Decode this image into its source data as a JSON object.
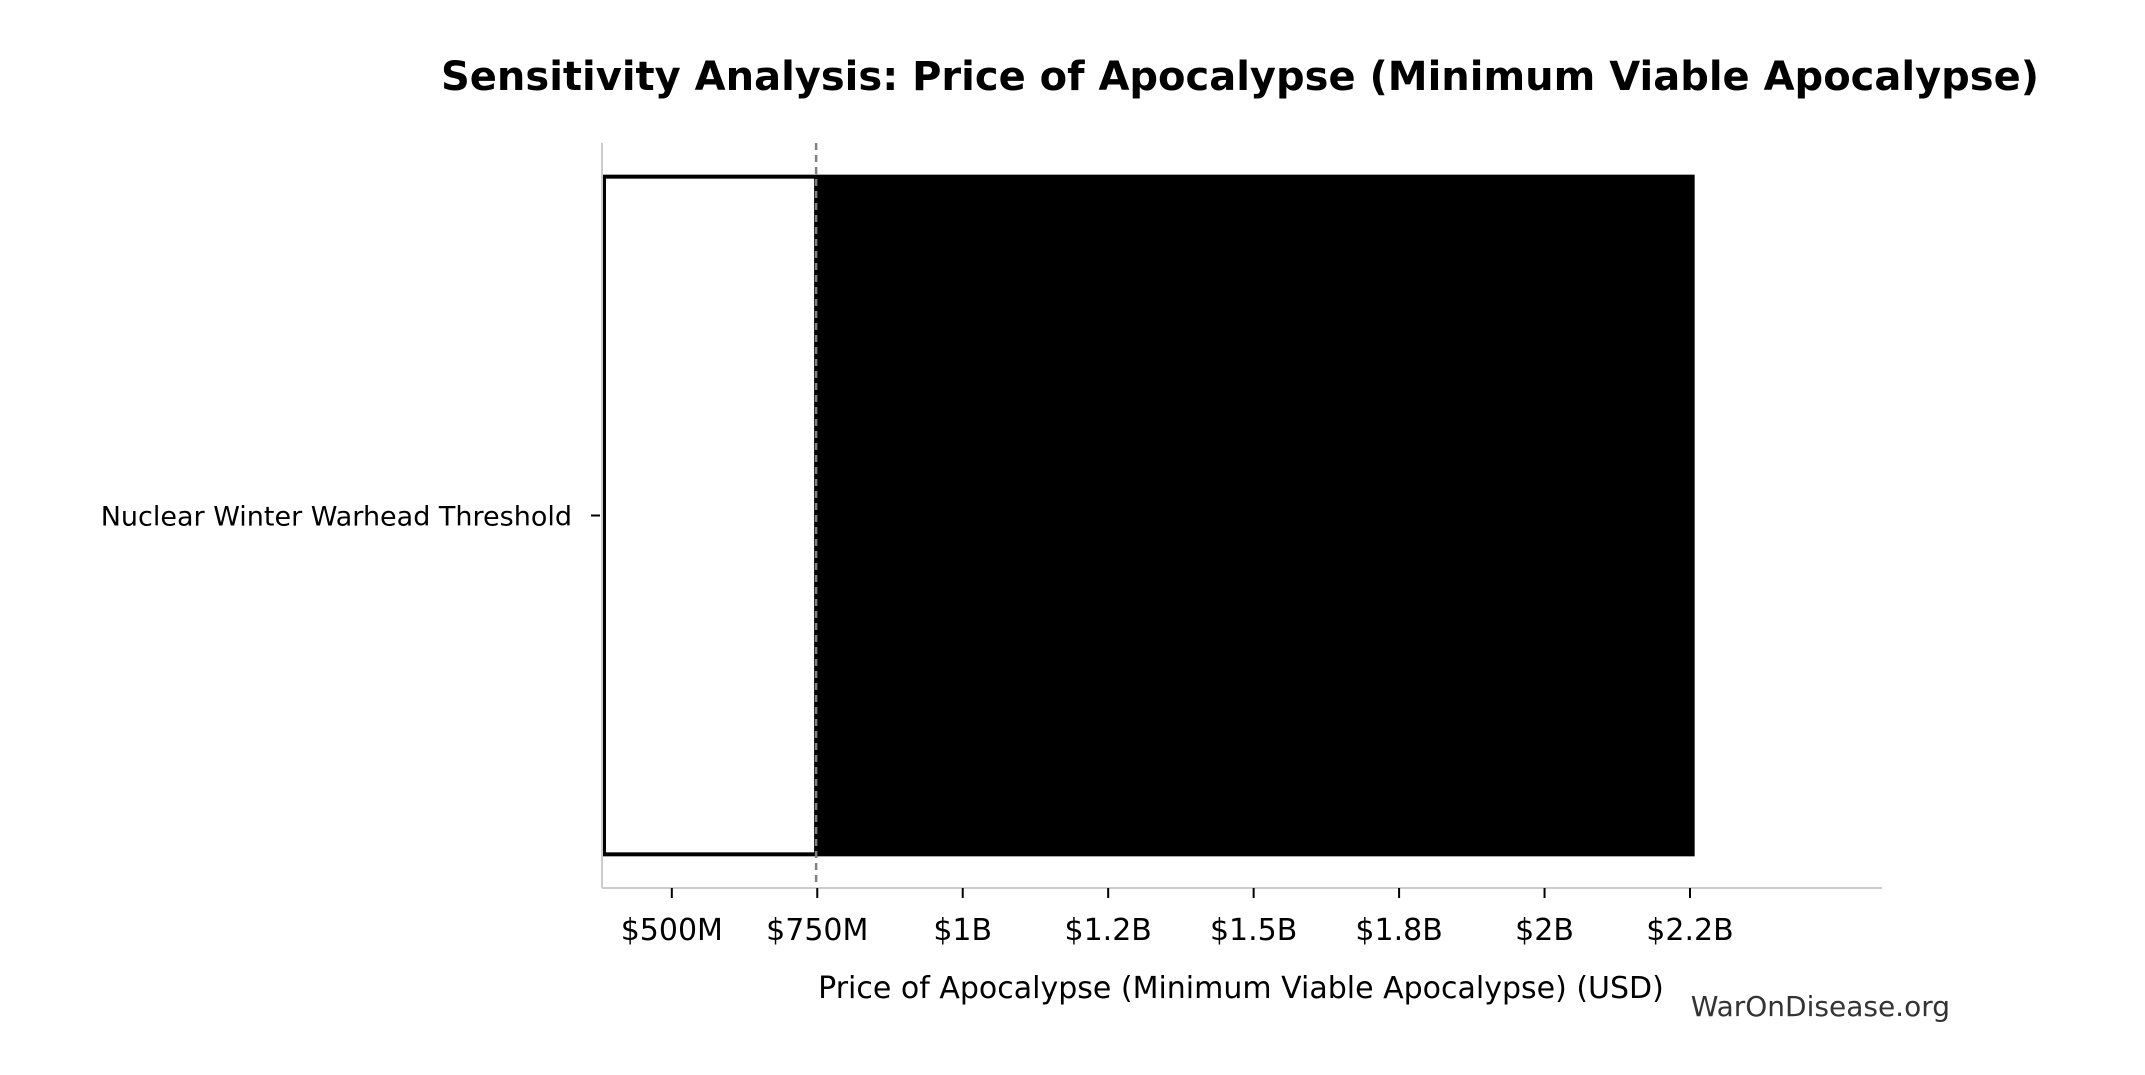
{
  "chart_data": {
    "type": "bar",
    "orientation": "horizontal",
    "chart_kind": "tornado",
    "title": "Sensitivity Analysis: Price of Apocalypse (Minimum Viable Apocalypse)",
    "xlabel": "Price of Apocalypse (Minimum Viable Apocalypse) (USD)",
    "ylabel": "",
    "baseline": 748000000,
    "xlim": [
      380000000,
      2580000000
    ],
    "x_ticks": [
      {
        "value": 500000000,
        "label": "$500M"
      },
      {
        "value": 750000000,
        "label": "$750M"
      },
      {
        "value": 1000000000,
        "label": "$1B"
      },
      {
        "value": 1250000000,
        "label": "$1.2B"
      },
      {
        "value": 1500000000,
        "label": "$1.5B"
      },
      {
        "value": 1750000000,
        "label": "$1.8B"
      },
      {
        "value": 2000000000,
        "label": "$2B"
      },
      {
        "value": 2250000000,
        "label": "$2.2B"
      }
    ],
    "bars": [
      {
        "category": "Nuclear Winter Warhead Threshold",
        "low": 380000000,
        "high": 2258000000
      }
    ],
    "colors": {
      "low_segment_fill": "#ffffff",
      "low_segment_stroke": "#000000",
      "high_segment_fill": "#000000",
      "baseline_line": "#808080",
      "axis": "#cccccc"
    },
    "grid": false,
    "legend": "none"
  },
  "watermark": "WarOnDisease.org"
}
